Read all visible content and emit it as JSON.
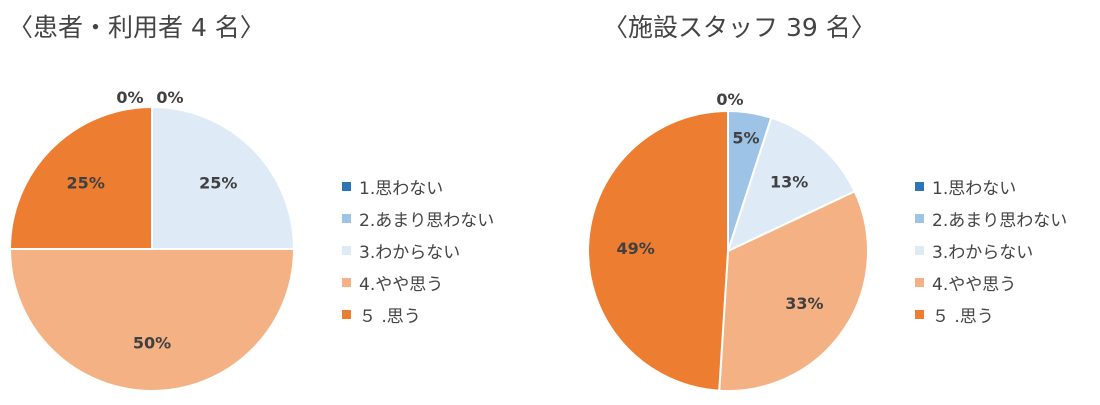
{
  "chart_data": [
    {
      "type": "pie",
      "title": "〈患者・利用者 4 名〉",
      "categories": [
        "1.思わない",
        "2.あまり思わない",
        "3.わからない",
        "4.やや思う",
        "５ .思う"
      ],
      "values": [
        0,
        0,
        25,
        50,
        25
      ],
      "data_labels": [
        "0%",
        "0%",
        "25%",
        "50%",
        "25%"
      ],
      "colors": [
        "#2E75B6",
        "#9DC3E6",
        "#DEEBF7",
        "#F4B183",
        "#ED7D31"
      ],
      "legend_position": "right"
    },
    {
      "type": "pie",
      "title": "〈施設スタッフ 39 名〉",
      "categories": [
        "1.思わない",
        "2.あまり思わない",
        "3.わからない",
        "4.やや思う",
        "５ .思う"
      ],
      "values": [
        0,
        5,
        13,
        33,
        49
      ],
      "data_labels": [
        "0%",
        "5%",
        "13%",
        "33%",
        "49%"
      ],
      "colors": [
        "#2E75B6",
        "#9DC3E6",
        "#DEEBF7",
        "#F4B183",
        "#ED7D31"
      ],
      "legend_position": "right"
    }
  ]
}
